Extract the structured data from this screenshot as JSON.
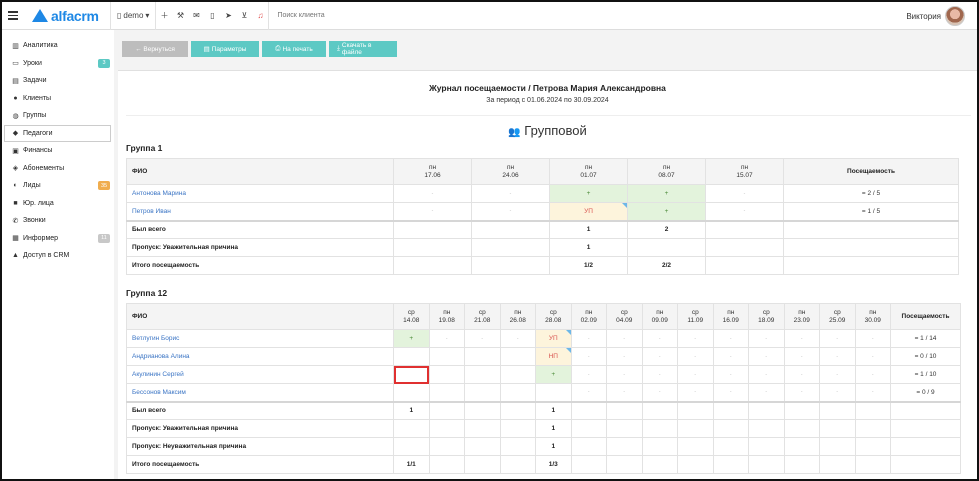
{
  "topbar": {
    "logo": "alfacrm",
    "branch": "demo",
    "search_placeholder": "Поиск клиента",
    "user_name": "Виктория"
  },
  "sidebar": {
    "items": [
      {
        "label": "Аналитика",
        "icon": "chart-icon"
      },
      {
        "label": "Уроки",
        "icon": "calendar-icon",
        "badge": "3",
        "badge_color": "#5dc9c4"
      },
      {
        "label": "Задачи",
        "icon": "tasks-icon"
      },
      {
        "label": "Клиенты",
        "icon": "user-icon"
      },
      {
        "label": "Группы",
        "icon": "users-icon"
      },
      {
        "label": "Педагоги",
        "icon": "graduation-cap-icon",
        "active": true
      },
      {
        "label": "Финансы",
        "icon": "money-icon"
      },
      {
        "label": "Абонементы",
        "icon": "tag-icon"
      },
      {
        "label": "Лиды",
        "icon": "user-plus-icon",
        "badge": "35",
        "badge_color": "#f0ad4e"
      },
      {
        "label": "Юр. лица",
        "icon": "briefcase-icon"
      },
      {
        "label": "Звонки",
        "icon": "phone-icon"
      },
      {
        "label": "Информер",
        "icon": "inbox-icon",
        "badge": "11",
        "badge_color": "#c8c8c8"
      },
      {
        "label": "Доступ в CRM",
        "icon": "lock-icon"
      }
    ]
  },
  "actions": {
    "back": "← Вернуться",
    "params": "Параметры",
    "print": "На печать",
    "download": "Скачать в файле"
  },
  "report": {
    "title": "Журнал посещаемости / Петрова Мария Александровна",
    "period": "За период с 01.06.2024 по 30.09.2024",
    "type": "Групповой"
  },
  "group1": {
    "name": "Группа 1",
    "fio_header": "ФИО",
    "attendance_header": "Посещаемость",
    "dates": [
      {
        "day": "пн",
        "date": "17.06"
      },
      {
        "day": "пн",
        "date": "24.06"
      },
      {
        "day": "пн",
        "date": "01.07"
      },
      {
        "day": "пн",
        "date": "08.07"
      },
      {
        "day": "пн",
        "date": "15.07"
      }
    ],
    "students": [
      {
        "name": "Антонова Марина",
        "cells": [
          "-",
          "-",
          "+",
          "+",
          "-"
        ],
        "total": "= 2 / 5"
      },
      {
        "name": "Петров Иван",
        "cells": [
          "-",
          "-",
          "УП",
          "+",
          "-"
        ],
        "total": "= 1 / 5"
      }
    ],
    "summary": [
      {
        "label": "Был всего",
        "cells": [
          "",
          "",
          "1",
          "2",
          ""
        ]
      },
      {
        "label": "Пропуск: Уважительная причина",
        "cells": [
          "",
          "",
          "1",
          "",
          ""
        ]
      },
      {
        "label": "Итого посещаемость",
        "cells": [
          "",
          "",
          "1/2",
          "2/2",
          ""
        ]
      }
    ]
  },
  "group2": {
    "name": "Группа 12",
    "fio_header": "ФИО",
    "attendance_header": "Посещаемость",
    "dates": [
      {
        "day": "ср",
        "date": "14.08"
      },
      {
        "day": "пн",
        "date": "19.08"
      },
      {
        "day": "ср",
        "date": "21.08"
      },
      {
        "day": "пн",
        "date": "26.08"
      },
      {
        "day": "ср",
        "date": "28.08"
      },
      {
        "day": "пн",
        "date": "02.09"
      },
      {
        "day": "ср",
        "date": "04.09"
      },
      {
        "day": "пн",
        "date": "09.09"
      },
      {
        "day": "ср",
        "date": "11.09"
      },
      {
        "day": "пн",
        "date": "16.09"
      },
      {
        "day": "ср",
        "date": "18.09"
      },
      {
        "day": "пн",
        "date": "23.09"
      },
      {
        "day": "ср",
        "date": "25.09"
      },
      {
        "day": "пн",
        "date": "30.09"
      }
    ],
    "students": [
      {
        "name": "Ветлугин Борис",
        "cells": [
          "+",
          "-",
          "-",
          "-",
          "УП",
          "-",
          "-",
          "-",
          "-",
          "-",
          "-",
          "-",
          "-",
          "-"
        ],
        "total": "= 1 / 14"
      },
      {
        "name": "Андрианова Алина",
        "cells": [
          "",
          "",
          "",
          "",
          "НП",
          "-",
          "-",
          "-",
          "-",
          "-",
          "-",
          "-",
          "-",
          "-"
        ],
        "total": "= 0 / 10"
      },
      {
        "name": "Акулинин Сергей",
        "cells": [
          "",
          "",
          "",
          "",
          "+",
          "-",
          "-",
          "-",
          "-",
          "-",
          "-",
          "-",
          "-",
          "-"
        ],
        "total": "= 1 / 10"
      },
      {
        "name": "Бессонов Максим",
        "cells": [
          "",
          "",
          "",
          "",
          "",
          "-",
          "-",
          "-",
          "-",
          "-",
          "-",
          "-",
          "-",
          "-"
        ],
        "total": "= 0 / 9"
      }
    ],
    "summary": [
      {
        "label": "Был всего",
        "cells": [
          "1",
          "",
          "",
          "",
          "1",
          "",
          "",
          "",
          "",
          "",
          "",
          "",
          "",
          ""
        ]
      },
      {
        "label": "Пропуск: Уважительная причина",
        "cells": [
          "",
          "",
          "",
          "",
          "1",
          "",
          "",
          "",
          "",
          "",
          "",
          "",
          "",
          ""
        ]
      },
      {
        "label": "Пропуск: Неуважительная причина",
        "cells": [
          "",
          "",
          "",
          "",
          "1",
          "",
          "",
          "",
          "",
          "",
          "",
          "",
          "",
          ""
        ]
      },
      {
        "label": "Итого посещаемость",
        "cells": [
          "1/1",
          "",
          "",
          "",
          "1/3",
          "",
          "",
          "",
          "",
          "",
          "",
          "",
          "",
          ""
        ]
      }
    ]
  }
}
